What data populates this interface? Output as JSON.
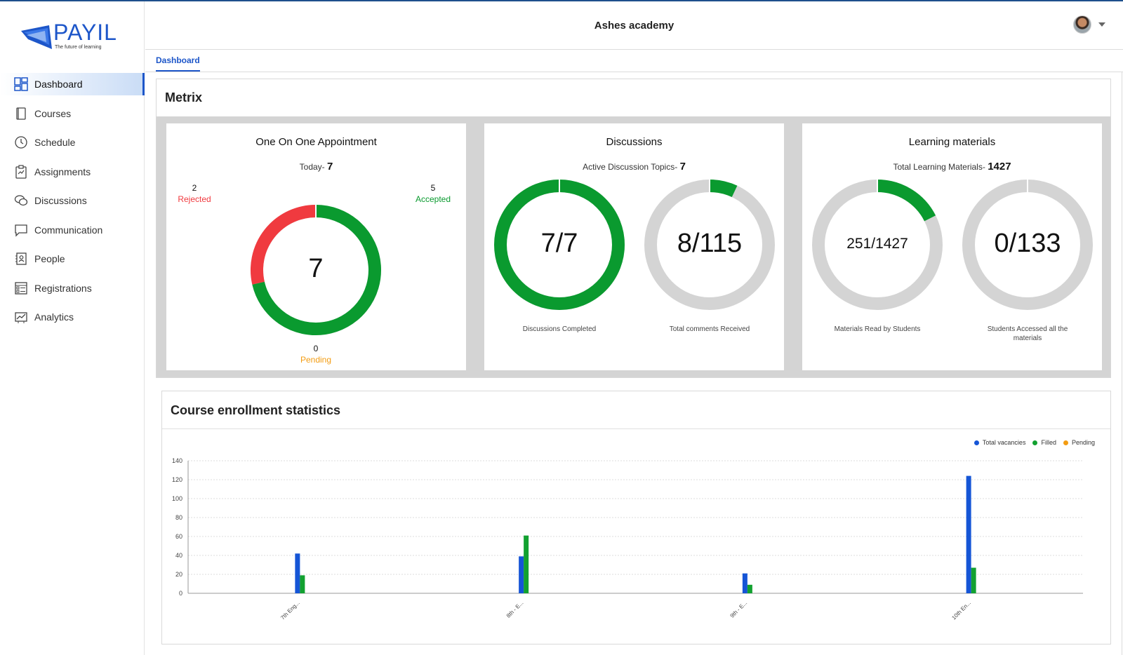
{
  "brand": {
    "name": "PAYIL",
    "tagline": "The future of learning",
    "color": "#1d56c9"
  },
  "sidebar": {
    "items": [
      {
        "label": "Dashboard",
        "icon": "dashboard-icon",
        "active": true
      },
      {
        "label": "Courses",
        "icon": "book-icon"
      },
      {
        "label": "Schedule",
        "icon": "clock-icon"
      },
      {
        "label": "Assignments",
        "icon": "clipboard-icon"
      },
      {
        "label": "Discussions",
        "icon": "chat-bubbles-icon"
      },
      {
        "label": "Communication",
        "icon": "message-icon"
      },
      {
        "label": "People",
        "icon": "contact-card-icon"
      },
      {
        "label": "Registrations",
        "icon": "form-icon"
      },
      {
        "label": "Analytics",
        "icon": "analytics-icon"
      }
    ]
  },
  "header": {
    "title": "Ashes academy",
    "avatar_icon": "user-avatar"
  },
  "tabs": [
    {
      "label": "Dashboard",
      "active": true
    }
  ],
  "metrix": {
    "title": "Metrix",
    "appointment": {
      "title": "One On One Appointment",
      "sub_label": "Today-",
      "sub_value": "7",
      "center": "7",
      "rejected_count": "2",
      "rejected_label": "Rejected",
      "accepted_count": "5",
      "accepted_label": "Accepted",
      "pending_count": "0",
      "pending_label": "Pending",
      "segments": {
        "accepted": 5,
        "rejected": 2,
        "pending": 0
      },
      "colors": {
        "accepted": "#0a9a2f",
        "rejected": "#f03a3f",
        "pending": "#f39c12"
      }
    },
    "discussions": {
      "title": "Discussions",
      "sub_label": "Active Discussion Topics-",
      "sub_value": "7",
      "completed": {
        "center": "7/7",
        "caption": "Discussions Completed",
        "fraction": 1.0
      },
      "comments": {
        "center": "8/115",
        "caption": "Total comments Received",
        "fraction": 0.0696
      }
    },
    "learning": {
      "title": "Learning materials",
      "sub_label": "Total Learning Materials-",
      "sub_value": "1427",
      "read": {
        "center": "251/1427",
        "caption": "Materials Read by Students",
        "fraction": 0.1759
      },
      "accessed": {
        "center": "0/133",
        "caption": "Students Accessed all the materials",
        "fraction": 0
      }
    },
    "colors": {
      "fill": "#0a9a2f",
      "track": "#d4d4d4"
    }
  },
  "course": {
    "title": "Course enrollment statistics"
  },
  "chart_data": {
    "type": "bar",
    "categories": [
      "7th Eng...",
      "8th - E...",
      "9th - E...",
      "10th En..."
    ],
    "series": [
      {
        "name": "Total vacancies",
        "color": "#1555d6",
        "values": [
          42,
          39,
          21,
          124
        ]
      },
      {
        "name": "Filled",
        "color": "#12a130",
        "values": [
          19,
          61,
          9,
          27
        ]
      },
      {
        "name": "Pending",
        "color": "#f39c12",
        "values": [
          0,
          0,
          0,
          0
        ]
      }
    ],
    "yticks": [
      0,
      20,
      40,
      60,
      80,
      100,
      120,
      140
    ],
    "ylim": [
      0,
      140
    ],
    "grid": true,
    "legend": "top-right"
  }
}
